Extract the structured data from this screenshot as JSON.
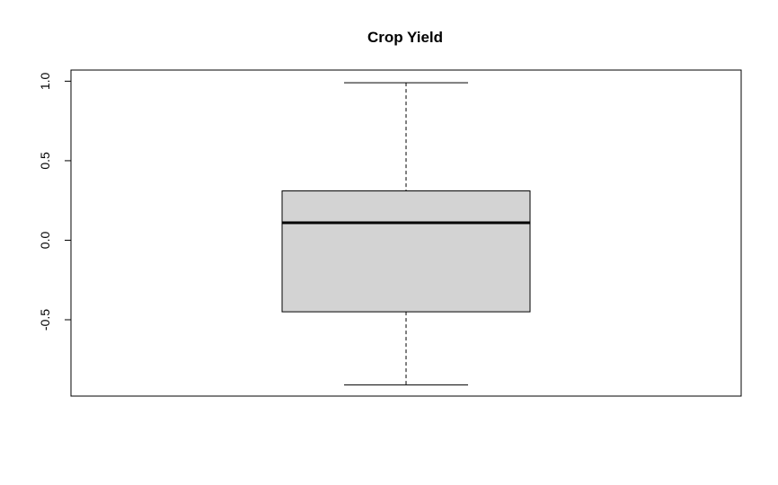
{
  "chart_data": {
    "type": "boxplot",
    "title": "Crop Yield",
    "xlabel": "",
    "ylabel": "",
    "ylim": [
      -0.98,
      1.07
    ],
    "yticks": [
      {
        "value": -0.5,
        "label": "-0.5"
      },
      {
        "value": 0.0,
        "label": "0.0"
      },
      {
        "value": 0.5,
        "label": "0.5"
      },
      {
        "value": 1.0,
        "label": "1.0"
      }
    ],
    "box": {
      "whisker_low": -0.91,
      "q1": -0.45,
      "median": 0.11,
      "q3": 0.31,
      "whisker_high": 0.99
    },
    "box_fill": "#d3d3d3",
    "line_color": "#000000",
    "grid": false,
    "legend": "none"
  }
}
